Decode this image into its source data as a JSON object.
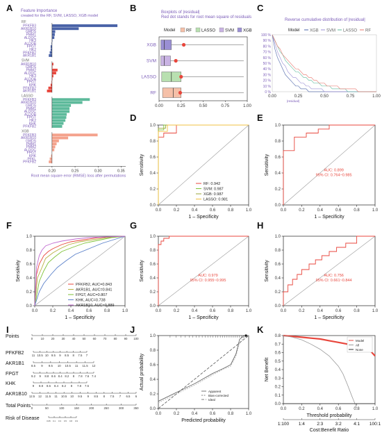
{
  "panel_letters": {
    "A": "A",
    "B": "B",
    "C": "C",
    "D": "D",
    "E": "E",
    "F": "F",
    "G": "G",
    "H": "H",
    "I": "I",
    "J": "J",
    "K": "K"
  },
  "colors": {
    "rf": "#e8746b",
    "rf_light": "#f6b8a8",
    "svm": "#e8746b",
    "xgb": "#4a63a8",
    "lasso": "#5dba9b",
    "purple": "#7b5cb8",
    "red": "#e8463c",
    "gray": "#888888",
    "green": "#7ec236",
    "blue": "#5a80c9",
    "magenta": "#c06ad0"
  },
  "chart_data": [
    {
      "id": "A",
      "type": "bar",
      "title": "Feature Importance",
      "subtitle": "created for the RF, SVM, LASSO, XGB model",
      "xlabel": "Root mean square error (RMSE) loss after permutations",
      "xlim": [
        0.17,
        0.36
      ],
      "xticks": [
        0.2,
        0.25,
        0.3,
        0.35
      ],
      "groups": [
        {
          "name": "RF",
          "color": "#4a63a8",
          "labels": [
            "PFKFB3",
            "AKR1B10",
            "GMDS",
            "PMM1",
            "ALDOC",
            "HK3",
            "ALDOB",
            "FPGT",
            "HK2",
            "PFKFB2",
            "AKR1B1"
          ],
          "values": [
            0.342,
            0.258,
            0.207,
            0.206,
            0.205,
            0.201,
            0.199,
            0.197,
            0.197,
            0.195,
            0.193
          ]
        },
        {
          "name": "SVM",
          "color": "#e8463c",
          "labels": [
            "AKR1B10",
            "GMDS",
            "PMM2",
            "ALDOC",
            "HK3",
            "ALDOA",
            "FPGT",
            "KHK",
            "PFKFB2",
            "AKR1B1"
          ],
          "values": [
            0.203,
            0.201,
            0.212,
            0.209,
            0.203,
            0.201,
            0.199,
            0.197,
            0.192,
            0.189
          ]
        },
        {
          "name": "LASSO",
          "color": "#5dba9b",
          "labels": [
            "PFKFB3",
            "AKR1B10",
            "GMDS",
            "PMM1",
            "ALDOC",
            "ALDOB",
            "FPGT",
            "HK2",
            "KHK",
            "PFKFB2"
          ],
          "values": [
            0.282,
            0.266,
            0.241,
            0.238,
            0.238,
            0.232,
            0.231,
            0.229,
            0.225,
            0.222
          ]
        },
        {
          "name": "XGB",
          "color": "#f4a28c",
          "labels": [
            "PFKFB3",
            "AKR1B10",
            "GMDS",
            "PMM1",
            "PMM2",
            "ALDOC",
            "FPGT",
            "KHK",
            "PFKL",
            "PFKFB2"
          ],
          "values": [
            0.299,
            0.235,
            0.215,
            0.21,
            0.207,
            0.205,
            0.2,
            0.198,
            0.195,
            0.193
          ]
        }
      ]
    },
    {
      "id": "B",
      "type": "box",
      "title": "Boxplots of |residual|",
      "subtitle": "Red dot stands for root mean square of residuals",
      "legend_title": "Model",
      "xlim": [
        0,
        1
      ],
      "xticks": [
        0.0,
        0.25,
        0.5,
        0.75,
        1.0
      ],
      "series": [
        {
          "name": "XGB",
          "q1": 0.02,
          "median": 0.06,
          "q3": 0.14,
          "max": 0.96,
          "rmse": 0.28,
          "color": "#9a8fd4"
        },
        {
          "name": "SVM",
          "q1": 0.02,
          "median": 0.06,
          "q3": 0.13,
          "max": 0.96,
          "rmse": 0.19,
          "color": "#c9b3e3"
        },
        {
          "name": "LASSO",
          "q1": 0.03,
          "median": 0.14,
          "q3": 0.25,
          "max": 0.96,
          "rmse": 0.25,
          "color": "#b8e0b0"
        },
        {
          "name": "RF",
          "q1": 0.04,
          "median": 0.16,
          "q3": 0.25,
          "max": 0.96,
          "rmse": 0.24,
          "color": "#f5c0a8"
        }
      ]
    },
    {
      "id": "C",
      "type": "line",
      "title": "Reverse cumulative distribution of |residual|",
      "legend_title": "Model",
      "legend": [
        "XGB",
        "SVM",
        "LASSO",
        "RF"
      ],
      "xlabel": "|residual|",
      "xticks": [
        0.0,
        0.25,
        0.5,
        0.75,
        1.0
      ],
      "yticks": [
        "0 %",
        "10 %",
        "20 %",
        "30 %",
        "40 %",
        "50 %",
        "60 %",
        "70 %",
        "80 %",
        "90 %",
        "100 %"
      ]
    },
    {
      "id": "D",
      "type": "line",
      "xlabel": "1 – Specificity",
      "ylabel": "Sensitivity",
      "ticks": [
        0.0,
        0.2,
        0.4,
        0.6,
        0.8,
        1.0
      ],
      "legend": [
        "RF: 0.942",
        "SVM: 0.987",
        "XGB: 0.987",
        "LASSO: 0.981"
      ],
      "series": [
        {
          "name": "RF",
          "color": "#e8463c",
          "x": [
            0,
            0,
            0.06,
            0.06,
            0.2,
            0.2,
            1
          ],
          "y": [
            0,
            0.85,
            0.85,
            0.9,
            0.9,
            1,
            1
          ]
        },
        {
          "name": "SVM",
          "color": "#7ec236",
          "x": [
            0,
            0,
            0.06,
            0.06,
            1
          ],
          "y": [
            0,
            0.94,
            0.94,
            1,
            1
          ]
        },
        {
          "name": "XGB",
          "color": "#9aa63a",
          "x": [
            0,
            0,
            0.08,
            0.08,
            1
          ],
          "y": [
            0,
            0.96,
            0.96,
            1,
            1
          ]
        },
        {
          "name": "LASSO",
          "color": "#f0c040",
          "x": [
            0,
            0,
            0.1,
            0.1,
            1
          ],
          "y": [
            0,
            0.92,
            0.92,
            1,
            1
          ]
        }
      ]
    },
    {
      "id": "E",
      "type": "line",
      "xlabel": "1 – Specificity",
      "ylabel": "Sensitivity",
      "ticks": [
        0.0,
        0.2,
        0.4,
        0.6,
        0.8,
        1.0
      ],
      "annotation": [
        "AUC: 0.899",
        "95% CI: 0.764~0.985"
      ],
      "series": [
        {
          "name": "ROC",
          "color": "#e8463c",
          "x": [
            0,
            0,
            0.12,
            0.12,
            0.25,
            0.25,
            0.38,
            0.38,
            0.5,
            0.5,
            1
          ],
          "y": [
            0,
            0.68,
            0.68,
            0.85,
            0.85,
            0.9,
            0.9,
            0.95,
            0.95,
            1,
            1
          ]
        }
      ]
    },
    {
      "id": "F",
      "type": "line",
      "xlabel": "1 – Specificity",
      "ylabel": "Sensitivity",
      "ticks": [
        0.0,
        0.2,
        0.4,
        0.6,
        0.8,
        1.0
      ],
      "legend": [
        "PFKFB2, AUC=0.843",
        "AKR1B1, AUC=0.841",
        "FPGT, AUC=0.807",
        "KHK, AUC=0.738",
        "AKR1B10, AUC=0.889"
      ],
      "series": [
        {
          "name": "PFKFB2",
          "color": "#e8463c",
          "x": [
            0,
            0.02,
            0.05,
            0.1,
            0.15,
            0.2,
            0.3,
            0.4,
            0.55,
            0.7,
            1
          ],
          "y": [
            0,
            0.45,
            0.6,
            0.72,
            0.78,
            0.82,
            0.88,
            0.92,
            0.95,
            0.98,
            1
          ]
        },
        {
          "name": "AKR1B1",
          "color": "#b8b040",
          "x": [
            0,
            0.03,
            0.08,
            0.12,
            0.2,
            0.28,
            0.38,
            0.5,
            0.65,
            0.8,
            1
          ],
          "y": [
            0,
            0.4,
            0.55,
            0.68,
            0.76,
            0.82,
            0.88,
            0.92,
            0.95,
            0.98,
            1
          ]
        },
        {
          "name": "FPGT",
          "color": "#7ec236",
          "x": [
            0,
            0.05,
            0.1,
            0.15,
            0.22,
            0.3,
            0.42,
            0.55,
            0.7,
            0.85,
            1
          ],
          "y": [
            0,
            0.35,
            0.5,
            0.62,
            0.7,
            0.78,
            0.84,
            0.9,
            0.94,
            0.98,
            1
          ]
        },
        {
          "name": "KHK",
          "color": "#5a80c9",
          "x": [
            0,
            0.05,
            0.1,
            0.18,
            0.25,
            0.35,
            0.45,
            0.6,
            0.75,
            0.9,
            1
          ],
          "y": [
            0,
            0.2,
            0.32,
            0.45,
            0.55,
            0.65,
            0.74,
            0.82,
            0.9,
            0.96,
            1
          ]
        },
        {
          "name": "AKR1B10",
          "color": "#c06ad0",
          "x": [
            0,
            0.02,
            0.05,
            0.08,
            0.12,
            0.2,
            0.3,
            0.45,
            0.6,
            0.8,
            1
          ],
          "y": [
            0,
            0.55,
            0.72,
            0.8,
            0.86,
            0.9,
            0.93,
            0.96,
            0.98,
            0.99,
            1
          ]
        }
      ]
    },
    {
      "id": "G",
      "type": "line",
      "xlabel": "1 – Specificity",
      "ylabel": "Sensitivity",
      "ticks": [
        0.0,
        0.2,
        0.4,
        0.6,
        0.8,
        1.0
      ],
      "annotation": [
        "AUC: 0.979",
        "95% CI: 0.955~0.995"
      ],
      "series": [
        {
          "name": "ROC",
          "color": "#e8463c",
          "x": [
            0,
            0,
            0.03,
            0.03,
            0.06,
            0.06,
            0.12,
            0.12,
            1
          ],
          "y": [
            0,
            0.88,
            0.88,
            0.93,
            0.93,
            0.97,
            0.97,
            1,
            1
          ]
        }
      ]
    },
    {
      "id": "H",
      "type": "line",
      "xlabel": "1 – Specificity",
      "ylabel": "Sensitivity",
      "ticks": [
        0.0,
        0.2,
        0.4,
        0.6,
        0.8,
        1.0
      ],
      "annotation": [
        "AUC: 0.756",
        "95% CI: 0.661~0.844"
      ],
      "series": [
        {
          "name": "ROC",
          "color": "#e8463c",
          "x": [
            0,
            0,
            0.05,
            0.05,
            0.1,
            0.1,
            0.15,
            0.15,
            0.2,
            0.2,
            0.28,
            0.28,
            0.35,
            0.35,
            0.42,
            0.42,
            0.5,
            0.5,
            0.58,
            0.58,
            0.68,
            0.68,
            0.8,
            0.8,
            1
          ],
          "y": [
            0,
            0.2,
            0.2,
            0.3,
            0.3,
            0.38,
            0.38,
            0.45,
            0.45,
            0.52,
            0.52,
            0.6,
            0.6,
            0.66,
            0.66,
            0.72,
            0.72,
            0.78,
            0.78,
            0.84,
            0.84,
            0.9,
            0.9,
            1,
            1
          ]
        }
      ]
    },
    {
      "id": "I",
      "type": "table",
      "rows": [
        {
          "label": "Points",
          "scale": [
            "0",
            "10",
            "20",
            "30",
            "40",
            "50",
            "60",
            "70",
            "80",
            "90",
            "100"
          ]
        },
        {
          "label": "PFKFB2",
          "scale": [
            "11",
            "10.5",
            "10",
            "9.5",
            "9",
            "8.5",
            "8",
            "7.5",
            "7"
          ]
        },
        {
          "label": "AKR1B1",
          "scale": [
            "8.5",
            "9",
            "9.5",
            "10",
            "10.5",
            "11",
            "11.5",
            "12"
          ]
        },
        {
          "label": "FPGT",
          "scale": [
            "9.2",
            "9",
            "8.8",
            "8.6",
            "8.4",
            "8.2",
            "8",
            "7.8",
            "7.6",
            "7.4"
          ]
        },
        {
          "label": "KHK",
          "scale": [
            "9",
            "8.8",
            "8.6",
            "8.4",
            "8.2",
            "8",
            "7.8",
            "7.6"
          ]
        },
        {
          "label": "AKR1B10",
          "scale": [
            "12.5",
            "12",
            "11.5",
            "11",
            "10.5",
            "10",
            "9.5",
            "9",
            "8.5",
            "8",
            "7.5",
            "7",
            "6.5",
            "6"
          ]
        },
        {
          "label": "Total Points",
          "scale": [
            "0",
            "50",
            "100",
            "150",
            "200",
            "250",
            "300",
            "350"
          ]
        },
        {
          "label": "Risk of Disease",
          "scale": [
            "0.05",
            "0.1",
            "0.3",
            "0.5",
            "0.8",
            "0.9"
          ]
        }
      ]
    },
    {
      "id": "J",
      "type": "line",
      "xlabel": "Predicted probability",
      "ylabel": "Actual probability",
      "ticks": [
        0.0,
        0.2,
        0.4,
        0.6,
        0.8,
        1.0
      ],
      "legend": [
        "Apparent",
        "Bias-corrected",
        "Ideal"
      ],
      "series": [
        {
          "name": "Apparent",
          "color": "#555555",
          "x": [
            0,
            0.2,
            0.4,
            0.6,
            0.72,
            0.8,
            0.86,
            0.9,
            0.95,
            1
          ],
          "y": [
            0.1,
            0.22,
            0.34,
            0.48,
            0.55,
            0.6,
            0.75,
            0.95,
            1,
            1
          ]
        },
        {
          "name": "Bias-corrected",
          "color": "#aaaaaa",
          "x": [
            0,
            0.2,
            0.4,
            0.6,
            0.72,
            0.8,
            0.86,
            0.9,
            0.95,
            1
          ],
          "y": [
            0.08,
            0.2,
            0.32,
            0.46,
            0.54,
            0.58,
            0.72,
            0.9,
            0.98,
            1
          ]
        },
        {
          "name": "Ideal",
          "color": "#555555",
          "x": [
            0,
            1
          ],
          "y": [
            0,
            1
          ]
        }
      ]
    },
    {
      "id": "K",
      "type": "line",
      "xlabel": "Threshold probability",
      "ylabel": "Net Benefit",
      "xticks": [
        0.0,
        0.2,
        0.4,
        0.6,
        0.8,
        1.0
      ],
      "yticks": [
        0.0,
        0.1,
        0.2,
        0.3,
        0.4,
        0.5,
        0.6,
        0.7,
        0.8
      ],
      "ylim": [
        -0.05,
        0.85
      ],
      "cost_benefit_label": "Cost:Benefit Ratio",
      "cost_benefit_ticks": [
        "1:100",
        "1:4",
        "2:3",
        "3:2",
        "4:1",
        "100:1"
      ],
      "legend": [
        "Model",
        "All",
        "None"
      ],
      "series": [
        {
          "name": "Model",
          "color": "#e8463c",
          "x": [
            0,
            0.1,
            0.2,
            0.3,
            0.4,
            0.5,
            0.6,
            0.7,
            0.8,
            0.9,
            0.95,
            1
          ],
          "y": [
            0.8,
            0.79,
            0.78,
            0.77,
            0.76,
            0.74,
            0.72,
            0.7,
            0.68,
            0.66,
            0.62,
            0.56
          ]
        },
        {
          "name": "All",
          "color": "#999999",
          "x": [
            0,
            0.1,
            0.2,
            0.3,
            0.4,
            0.5,
            0.6,
            0.65,
            0.7,
            0.75,
            0.8
          ],
          "y": [
            0.8,
            0.78,
            0.75,
            0.7,
            0.64,
            0.56,
            0.44,
            0.35,
            0.22,
            0.08,
            -0.05
          ]
        },
        {
          "name": "None",
          "color": "#333333",
          "x": [
            0,
            1
          ],
          "y": [
            0,
            0
          ]
        }
      ]
    }
  ]
}
